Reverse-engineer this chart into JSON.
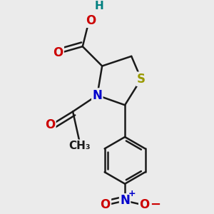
{
  "bg_color": "#ebebeb",
  "bond_color": "#1a1a1a",
  "bond_width": 1.8,
  "dbo": 0.055,
  "atom_colors": {
    "O": "#cc0000",
    "N": "#0000cc",
    "S": "#999900",
    "H": "#008080",
    "C": "#1a1a1a"
  },
  "font_size": 12,
  "figsize": [
    3.0,
    3.0
  ],
  "dpi": 100
}
